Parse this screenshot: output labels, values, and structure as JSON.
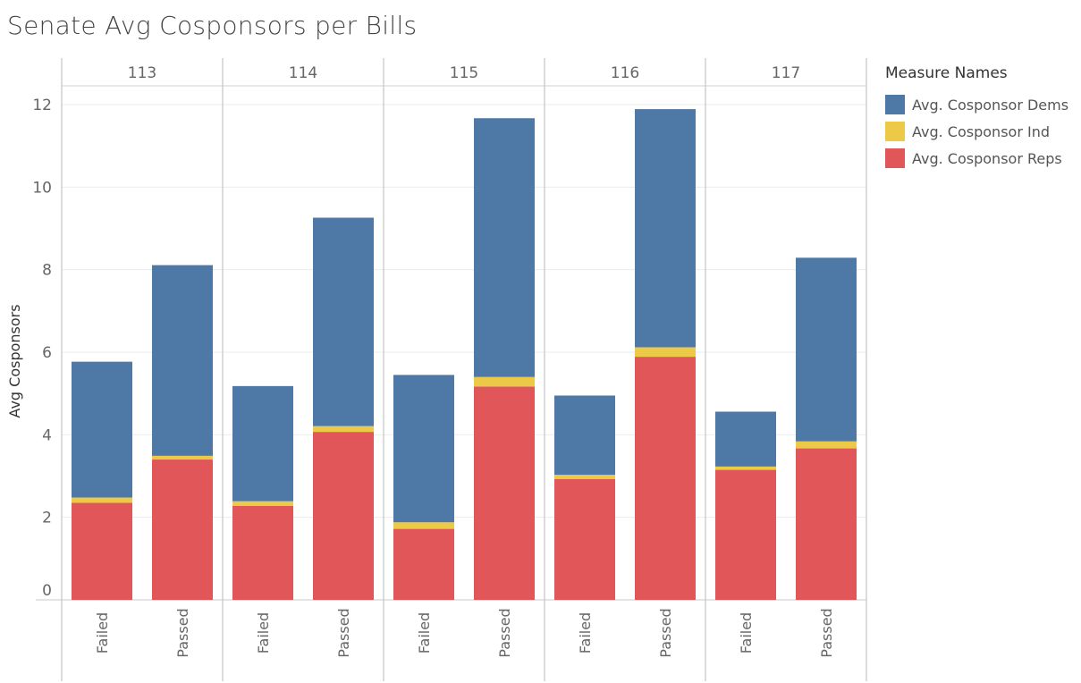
{
  "chart_data": {
    "type": "bar",
    "stacked": true,
    "title": "Senate Avg Cosponsors per Bills",
    "ylabel": "Avg Cosponsors",
    "xlabel": "",
    "ylim": [
      0,
      12
    ],
    "yticks": [
      "0",
      "2",
      "4",
      "6",
      "8",
      "10",
      "12"
    ],
    "grid": true,
    "legend_position": "right",
    "legend_title": "Measure Names",
    "panels": [
      "113",
      "114",
      "115",
      "116",
      "117"
    ],
    "categories": [
      "Failed",
      "Passed"
    ],
    "series": [
      {
        "name": "Avg. Cosponsor Reps",
        "color": "#e15759",
        "values": [
          [
            2.35,
            3.4
          ],
          [
            2.28,
            4.07
          ],
          [
            1.72,
            5.17
          ],
          [
            2.93,
            5.89
          ],
          [
            3.15,
            3.67
          ]
        ]
      },
      {
        "name": "Avg. Cosponsor Ind",
        "color": "#edc948",
        "values": [
          [
            0.13,
            0.09
          ],
          [
            0.11,
            0.14
          ],
          [
            0.16,
            0.23
          ],
          [
            0.1,
            0.23
          ],
          [
            0.08,
            0.17
          ]
        ]
      },
      {
        "name": "Avg. Cosponsor Dems",
        "color": "#4e79a7",
        "values": [
          [
            3.29,
            4.62
          ],
          [
            2.79,
            5.05
          ],
          [
            3.57,
            6.27
          ],
          [
            1.92,
            5.77
          ],
          [
            1.33,
            4.45
          ]
        ]
      }
    ]
  }
}
